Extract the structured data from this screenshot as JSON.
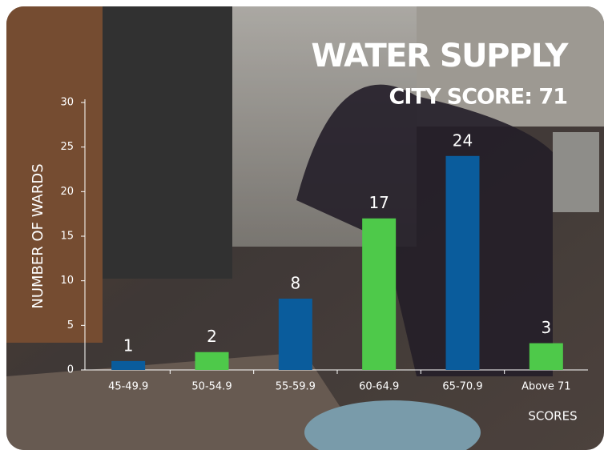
{
  "chart_data": {
    "type": "bar",
    "title": "WATER SUPPLY",
    "subtitle": "CITY SCORE: 71",
    "y_label": "NUMBER OF WARDS",
    "x_label": "SCORES",
    "categories": [
      "45-49.9",
      "50-54.9",
      "55-59.9",
      "60-64.9",
      "65-70.9",
      "Above 71"
    ],
    "values": [
      1,
      2,
      8,
      17,
      24,
      3
    ],
    "colors": [
      "#0a5c9c",
      "#4ec94a",
      "#0a5c9c",
      "#4ec94a",
      "#0a5c9c",
      "#4ec94a"
    ],
    "ylim": [
      0,
      30
    ],
    "yticks": [
      0,
      5,
      10,
      15,
      20,
      25,
      30
    ],
    "grid": false
  }
}
